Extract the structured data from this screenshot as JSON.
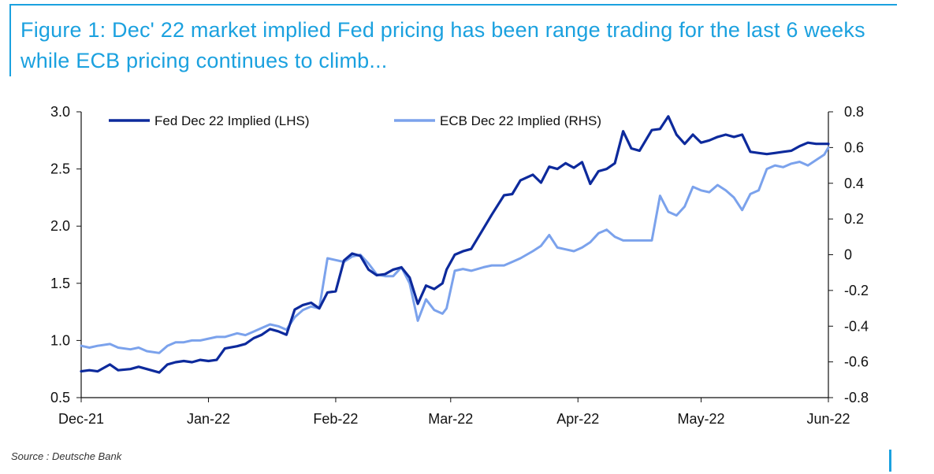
{
  "header": {
    "title": "Figure 1: Dec' 22 market implied Fed pricing has been range trading for the last 6 weeks while ECB pricing continues to climb..."
  },
  "footer": {
    "source": "Source : Deutsche Bank"
  },
  "colors": {
    "accent": "#1ba1df",
    "fed": "#0d2a9c",
    "ecb": "#7ba2ec"
  },
  "chart_data": {
    "type": "line",
    "title": "",
    "xlabel": "",
    "ylabel": "",
    "xlim": [
      "2021-12-01",
      "2022-06-01"
    ],
    "x_tick_labels": [
      "Dec-21",
      "Jan-22",
      "Feb-22",
      "Mar-22",
      "Apr-22",
      "May-22",
      "Jun-22"
    ],
    "x_tick_dates": [
      "2021-12-01",
      "2022-01-01",
      "2022-02-01",
      "2022-03-01",
      "2022-04-01",
      "2022-05-01",
      "2022-06-01"
    ],
    "y_left": {
      "range": [
        0.5,
        3.0
      ],
      "ticks": [
        "0.5",
        "1.0",
        "1.5",
        "2.0",
        "2.5",
        "3.0"
      ]
    },
    "y_right": {
      "range": [
        -0.8,
        0.8
      ],
      "ticks": [
        "-0.8",
        "-0.6",
        "-0.4",
        "-0.2",
        "0",
        "0.2",
        "0.4",
        "0.6",
        "0.8"
      ]
    },
    "grid": false,
    "legend_position": "top",
    "series": [
      {
        "name": "Fed Dec 22 Implied (LHS)",
        "axis": "left",
        "color": "#0d2a9c",
        "x": [
          "2021-12-01",
          "2021-12-03",
          "2021-12-05",
          "2021-12-08",
          "2021-12-10",
          "2021-12-13",
          "2021-12-15",
          "2021-12-17",
          "2021-12-20",
          "2021-12-22",
          "2021-12-24",
          "2021-12-26",
          "2021-12-28",
          "2021-12-30",
          "2022-01-01",
          "2022-01-03",
          "2022-01-05",
          "2022-01-08",
          "2022-01-10",
          "2022-01-12",
          "2022-01-14",
          "2022-01-16",
          "2022-01-18",
          "2022-01-20",
          "2022-01-22",
          "2022-01-24",
          "2022-01-26",
          "2022-01-28",
          "2022-01-30",
          "2022-02-01",
          "2022-02-03",
          "2022-02-05",
          "2022-02-07",
          "2022-02-09",
          "2022-02-11",
          "2022-02-13",
          "2022-02-15",
          "2022-02-17",
          "2022-02-19",
          "2022-02-21",
          "2022-02-23",
          "2022-02-25",
          "2022-02-27",
          "2022-02-28",
          "2022-03-02",
          "2022-03-04",
          "2022-03-06",
          "2022-03-09",
          "2022-03-11",
          "2022-03-14",
          "2022-03-16",
          "2022-03-18",
          "2022-03-21",
          "2022-03-23",
          "2022-03-25",
          "2022-03-27",
          "2022-03-29",
          "2022-03-31",
          "2022-04-02",
          "2022-04-04",
          "2022-04-06",
          "2022-04-08",
          "2022-04-10",
          "2022-04-12",
          "2022-04-14",
          "2022-04-16",
          "2022-04-19",
          "2022-04-21",
          "2022-04-23",
          "2022-04-25",
          "2022-04-27",
          "2022-04-29",
          "2022-05-01",
          "2022-05-03",
          "2022-05-05",
          "2022-05-07",
          "2022-05-09",
          "2022-05-11",
          "2022-05-13",
          "2022-05-15",
          "2022-05-17",
          "2022-05-19",
          "2022-05-21",
          "2022-05-23",
          "2022-05-25",
          "2022-05-27",
          "2022-05-29",
          "2022-05-31",
          "2022-06-01"
        ],
        "values": [
          0.73,
          0.74,
          0.73,
          0.79,
          0.74,
          0.75,
          0.77,
          0.75,
          0.72,
          0.79,
          0.81,
          0.82,
          0.81,
          0.83,
          0.82,
          0.83,
          0.93,
          0.95,
          0.97,
          1.02,
          1.05,
          1.1,
          1.08,
          1.05,
          1.27,
          1.31,
          1.33,
          1.28,
          1.42,
          1.43,
          1.7,
          1.76,
          1.74,
          1.62,
          1.57,
          1.58,
          1.62,
          1.64,
          1.55,
          1.32,
          1.48,
          1.45,
          1.5,
          1.62,
          1.75,
          1.78,
          1.8,
          1.98,
          2.1,
          2.27,
          2.28,
          2.4,
          2.45,
          2.38,
          2.52,
          2.5,
          2.55,
          2.51,
          2.56,
          2.37,
          2.48,
          2.5,
          2.55,
          2.83,
          2.68,
          2.66,
          2.84,
          2.85,
          2.96,
          2.8,
          2.72,
          2.8,
          2.73,
          2.75,
          2.78,
          2.8,
          2.78,
          2.8,
          2.65,
          2.64,
          2.63,
          2.64,
          2.65,
          2.66,
          2.7,
          2.73,
          2.72,
          2.72,
          2.72
        ]
      },
      {
        "name": "ECB Dec 22 Implied (RHS)",
        "axis": "right",
        "color": "#7ba2ec",
        "x": [
          "2021-12-01",
          "2021-12-03",
          "2021-12-05",
          "2021-12-08",
          "2021-12-10",
          "2021-12-13",
          "2021-12-15",
          "2021-12-17",
          "2021-12-20",
          "2021-12-22",
          "2021-12-24",
          "2021-12-26",
          "2021-12-28",
          "2021-12-30",
          "2022-01-01",
          "2022-01-03",
          "2022-01-05",
          "2022-01-08",
          "2022-01-10",
          "2022-01-12",
          "2022-01-14",
          "2022-01-16",
          "2022-01-18",
          "2022-01-20",
          "2022-01-22",
          "2022-01-24",
          "2022-01-26",
          "2022-01-28",
          "2022-01-30",
          "2022-02-01",
          "2022-02-03",
          "2022-02-05",
          "2022-02-07",
          "2022-02-09",
          "2022-02-11",
          "2022-02-13",
          "2022-02-15",
          "2022-02-17",
          "2022-02-19",
          "2022-02-21",
          "2022-02-23",
          "2022-02-25",
          "2022-02-27",
          "2022-02-28",
          "2022-03-02",
          "2022-03-04",
          "2022-03-06",
          "2022-03-09",
          "2022-03-11",
          "2022-03-14",
          "2022-03-16",
          "2022-03-18",
          "2022-03-21",
          "2022-03-23",
          "2022-03-25",
          "2022-03-27",
          "2022-03-29",
          "2022-03-31",
          "2022-04-02",
          "2022-04-04",
          "2022-04-06",
          "2022-04-08",
          "2022-04-10",
          "2022-04-12",
          "2022-04-14",
          "2022-04-16",
          "2022-04-19",
          "2022-04-21",
          "2022-04-23",
          "2022-04-25",
          "2022-04-27",
          "2022-04-29",
          "2022-05-01",
          "2022-05-03",
          "2022-05-05",
          "2022-05-07",
          "2022-05-09",
          "2022-05-11",
          "2022-05-13",
          "2022-05-15",
          "2022-05-17",
          "2022-05-19",
          "2022-05-21",
          "2022-05-23",
          "2022-05-25",
          "2022-05-27",
          "2022-05-29",
          "2022-05-31",
          "2022-06-01"
        ],
        "values": [
          -0.51,
          -0.52,
          -0.51,
          -0.5,
          -0.52,
          -0.53,
          -0.52,
          -0.54,
          -0.55,
          -0.51,
          -0.49,
          -0.49,
          -0.48,
          -0.48,
          -0.47,
          -0.46,
          -0.46,
          -0.44,
          -0.45,
          -0.43,
          -0.41,
          -0.39,
          -0.4,
          -0.42,
          -0.35,
          -0.31,
          -0.29,
          -0.3,
          -0.02,
          -0.03,
          -0.04,
          -0.01,
          0.0,
          -0.05,
          -0.11,
          -0.12,
          -0.12,
          -0.07,
          -0.16,
          -0.37,
          -0.25,
          -0.31,
          -0.33,
          -0.3,
          -0.09,
          -0.08,
          -0.09,
          -0.07,
          -0.06,
          -0.06,
          -0.04,
          -0.02,
          0.02,
          0.05,
          0.11,
          0.04,
          0.03,
          0.02,
          0.04,
          0.07,
          0.12,
          0.14,
          0.1,
          0.08,
          0.08,
          0.08,
          0.08,
          0.33,
          0.24,
          0.22,
          0.27,
          0.38,
          0.36,
          0.35,
          0.39,
          0.36,
          0.32,
          0.25,
          0.34,
          0.36,
          0.48,
          0.5,
          0.49,
          0.51,
          0.52,
          0.5,
          0.53,
          0.56,
          0.6
        ]
      }
    ]
  }
}
